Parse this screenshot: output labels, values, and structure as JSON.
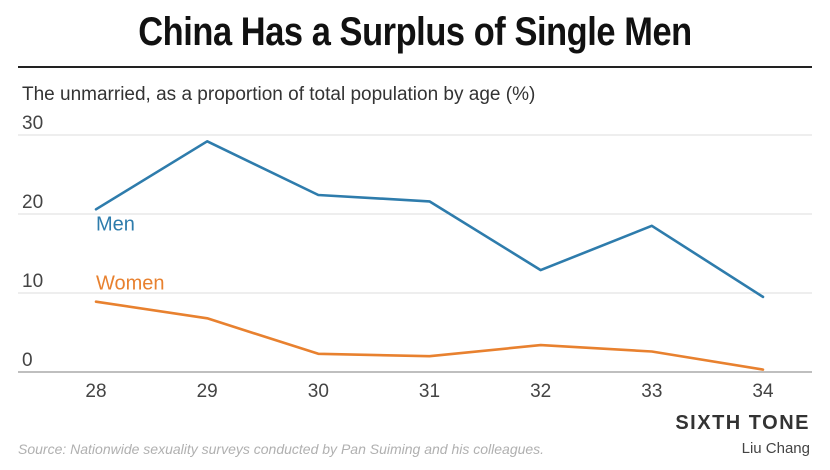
{
  "header": {
    "title": "China Has a Surplus of Single Men",
    "subtitle": "The unmarried, as a proportion of total population by age (%)"
  },
  "chart_data": {
    "type": "line",
    "title": "China Has a Surplus of Single Men",
    "subtitle": "The unmarried, as a proportion of total population by age (%)",
    "xlabel": "",
    "ylabel": "",
    "x": [
      28,
      29,
      30,
      31,
      32,
      33,
      34
    ],
    "ylim": [
      0,
      30
    ],
    "yticks": [
      0,
      10,
      20,
      30
    ],
    "grid": true,
    "legend": "inline labels",
    "series": [
      {
        "name": "Men",
        "color": "#2e7cac",
        "values": [
          20.6,
          29.2,
          22.4,
          21.6,
          12.9,
          18.5,
          9.5
        ]
      },
      {
        "name": "Women",
        "color": "#e8812f",
        "values": [
          8.9,
          6.8,
          2.3,
          2.0,
          3.4,
          2.6,
          0.3
        ]
      }
    ]
  },
  "footer": {
    "source": "Source: Nationwide sexuality surveys conducted by Pan Suiming and his colleagues.",
    "brand": "SIXTH TONE",
    "author": "Liu Chang"
  }
}
